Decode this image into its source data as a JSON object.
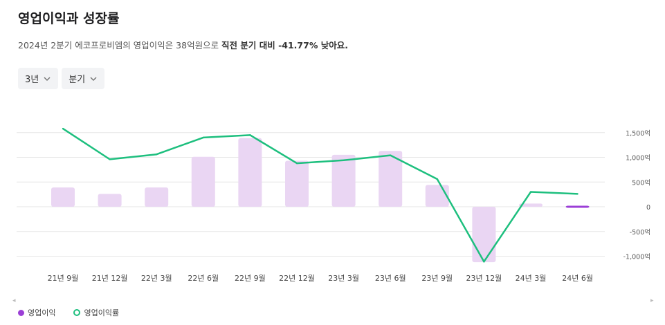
{
  "header": {
    "title": "영업이익과 성장률",
    "subtitle_prefix": "2024년 2분기 에코프로비엠의 영업이익은 38억원으로 ",
    "subtitle_highlight": "직전 분기 대비 -41.77% 낮아요."
  },
  "filters": {
    "period": "3년",
    "interval": "분기"
  },
  "colors": {
    "bar": "#ead6f3",
    "bar_latest": "#9b3fd6",
    "line": "#1dbf7e",
    "grid": "#e6e6e6"
  },
  "chart_data": {
    "type": "bar",
    "categories": [
      "21년 9월",
      "21년 12월",
      "22년 3월",
      "22년 6월",
      "22년 9월",
      "22년 12월",
      "23년 3월",
      "23년 6월",
      "23년 9월",
      "23년 12월",
      "24년 3월",
      "24년 6월"
    ],
    "series": [
      {
        "name": "영업이익",
        "type": "bar",
        "values": [
          390,
          260,
          390,
          1010,
          1390,
          930,
          1050,
          1130,
          440,
          -1120,
          65,
          38
        ]
      },
      {
        "name": "영업이익률",
        "type": "line",
        "values": [
          1580,
          960,
          1060,
          1400,
          1450,
          880,
          940,
          1040,
          560,
          -1110,
          300,
          260
        ]
      }
    ],
    "yticks": [
      1500,
      1000,
      500,
      0,
      -500,
      -1000
    ],
    "ytick_labels": [
      "1,500억",
      "1,000억",
      "500억",
      "0",
      "-500억",
      "-1,000억"
    ],
    "ylim": [
      -1100,
      1500
    ],
    "grid": true,
    "legend_position": "bottom-left"
  },
  "legend": {
    "bar_label": "영업이익",
    "line_label": "영업이익률"
  },
  "scroll": {
    "left": "◂",
    "right": "▸"
  }
}
